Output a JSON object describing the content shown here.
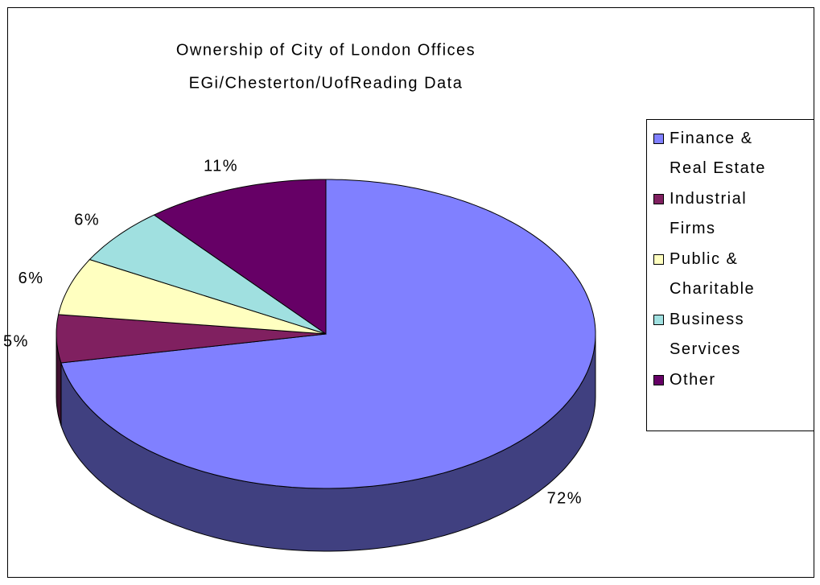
{
  "chart_data": {
    "type": "pie",
    "title": "Ownership of City of London Offices",
    "subtitle": "EGi/Chesterton/UofReading Data",
    "categories": [
      "Finance & Real Estate",
      "Industrial Firms",
      "Public & Charitable",
      "Business Services",
      "Other"
    ],
    "values": [
      72,
      5,
      6,
      6,
      11
    ],
    "value_labels": [
      "72%",
      "5%",
      "6%",
      "6%",
      "11%"
    ],
    "colors": [
      "#8080ff",
      "#802060",
      "#ffffc0",
      "#a0e0e0",
      "#660066"
    ],
    "legend": "right"
  }
}
